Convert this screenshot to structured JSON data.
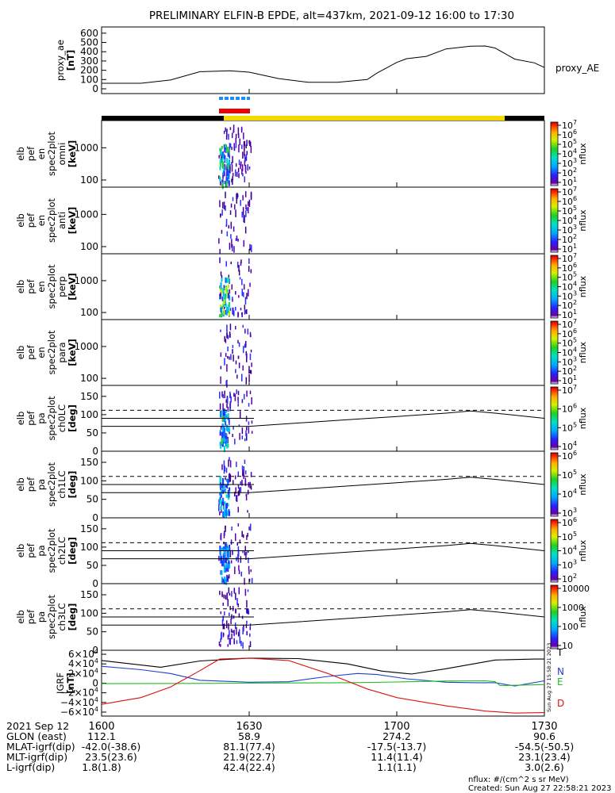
{
  "title": "PRELIMINARY ELFIN-B EPDE, alt=437km, 2021-09-12 16:00 to 17:30",
  "colors": {
    "axis": "#000000",
    "background": "#ffffff",
    "bar_black": "#000000",
    "bar_yellow": "#f5d800",
    "marker_red": "#ee0000",
    "marker_blue": "#1a8cff",
    "line_north": "#1f3fd0",
    "line_east": "#22bb22",
    "line_down": "#dd1111",
    "line_total": "#000000"
  },
  "chart_data": [
    {
      "type": "line",
      "panel": "proxy_ae",
      "ylabel_lines": [
        "proxy_ae",
        "[nT]"
      ],
      "legend_label": "proxy_AE",
      "ylim": [
        0,
        650
      ],
      "yticks": [
        "0",
        "100",
        "200",
        "300",
        "400",
        "500",
        "600"
      ],
      "ytick_values": [
        0,
        100,
        200,
        300,
        400,
        500,
        600
      ],
      "x": [
        0,
        8,
        14,
        20,
        26,
        30,
        36,
        42,
        48,
        54,
        56,
        60,
        62,
        66,
        70,
        75,
        78,
        80,
        84,
        88,
        90
      ],
      "values": [
        60,
        60,
        95,
        185,
        195,
        180,
        110,
        70,
        70,
        100,
        170,
        285,
        325,
        350,
        430,
        460,
        462,
        440,
        320,
        280,
        230
      ]
    },
    {
      "type": "heatmap",
      "panel": "omni",
      "ylabel_lines": [
        "elb",
        "pef",
        "en",
        "spec2plot",
        "omni",
        "[keV]"
      ],
      "scale": "log",
      "yticks": [
        "100",
        "1000"
      ],
      "ytick_values": [
        100,
        1000
      ],
      "colorbar": {
        "label": "nflux",
        "ticks": [
          "10",
          "10",
          "10",
          "10",
          "10",
          "10",
          "10"
        ],
        "exponents": [
          "1",
          "2",
          "3",
          "4",
          "5",
          "6",
          "7"
        ]
      }
    },
    {
      "type": "heatmap",
      "panel": "anti",
      "ylabel_lines": [
        "elb",
        "pef",
        "en",
        "spec2plot",
        "anti",
        "[keV]"
      ],
      "scale": "log",
      "yticks": [
        "100",
        "1000"
      ],
      "ytick_values": [
        100,
        1000
      ],
      "colorbar": {
        "label": "nflux",
        "ticks": [
          "10",
          "10",
          "10",
          "10",
          "10",
          "10",
          "10"
        ],
        "exponents": [
          "1",
          "2",
          "3",
          "4",
          "5",
          "6",
          "7"
        ]
      }
    },
    {
      "type": "heatmap",
      "panel": "perp",
      "ylabel_lines": [
        "elb",
        "pef",
        "en",
        "spec2plot",
        "perp",
        "[keV]"
      ],
      "scale": "log",
      "yticks": [
        "100",
        "1000"
      ],
      "ytick_values": [
        100,
        1000
      ],
      "colorbar": {
        "label": "nflux",
        "ticks": [
          "10",
          "10",
          "10",
          "10",
          "10",
          "10",
          "10"
        ],
        "exponents": [
          "1",
          "2",
          "3",
          "4",
          "5",
          "6",
          "7"
        ]
      }
    },
    {
      "type": "heatmap",
      "panel": "para",
      "ylabel_lines": [
        "elb",
        "pef",
        "en",
        "spec2plot",
        "para",
        "[keV]"
      ],
      "scale": "log",
      "yticks": [
        "100",
        "1000"
      ],
      "ytick_values": [
        100,
        1000
      ],
      "colorbar": {
        "label": "nflux",
        "ticks": [
          "10",
          "10",
          "10",
          "10",
          "10",
          "10",
          "10"
        ],
        "exponents": [
          "1",
          "2",
          "3",
          "4",
          "5",
          "6",
          "7"
        ]
      }
    },
    {
      "type": "heatmap",
      "panel": "ch0LC",
      "ylabel_lines": [
        "elb",
        "pef",
        "pa",
        "spec2plot",
        "ch0LC",
        "[deg]"
      ],
      "ylim": [
        0,
        180
      ],
      "yticks": [
        "0",
        "50",
        "100",
        "150"
      ],
      "ytick_values": [
        0,
        50,
        100,
        150
      ],
      "colorbar": {
        "label": "nflux",
        "ticks": [
          "10",
          "10",
          "10",
          "10"
        ],
        "exponents": [
          "4",
          "5",
          "6",
          "7"
        ]
      }
    },
    {
      "type": "heatmap",
      "panel": "ch1LC",
      "ylabel_lines": [
        "elb",
        "pef",
        "pa",
        "spec2plot",
        "ch1LC",
        "[deg]"
      ],
      "ylim": [
        0,
        180
      ],
      "yticks": [
        "0",
        "50",
        "100",
        "150"
      ],
      "ytick_values": [
        0,
        50,
        100,
        150
      ],
      "colorbar": {
        "label": "nflux",
        "ticks": [
          "10",
          "10",
          "10",
          "10"
        ],
        "exponents": [
          "3",
          "4",
          "5",
          "6"
        ]
      }
    },
    {
      "type": "heatmap",
      "panel": "ch2LC",
      "ylabel_lines": [
        "elb",
        "pef",
        "pa",
        "spec2plot",
        "ch2LC",
        "[deg]"
      ],
      "ylim": [
        0,
        180
      ],
      "yticks": [
        "0",
        "50",
        "100",
        "150"
      ],
      "ytick_values": [
        0,
        50,
        100,
        150
      ],
      "colorbar": {
        "label": "nflux",
        "ticks": [
          "10",
          "10",
          "10",
          "10",
          "10"
        ],
        "exponents": [
          "2",
          "3",
          "4",
          "5",
          "6"
        ]
      }
    },
    {
      "type": "heatmap",
      "panel": "ch3LC",
      "ylabel_lines": [
        "elb",
        "pef",
        "pa",
        "spec2plot",
        "ch3LC",
        "[deg]"
      ],
      "ylim": [
        0,
        180
      ],
      "yticks": [
        "0",
        "50",
        "100",
        "150"
      ],
      "ytick_values": [
        0,
        50,
        100,
        150
      ],
      "colorbar": {
        "label": "nflux",
        "ticks": [
          "10",
          "100",
          "1000",
          "10000"
        ]
      }
    },
    {
      "type": "line",
      "panel": "igrf",
      "ylabel_lines": [
        "IGRF",
        "[nT]"
      ],
      "ylim": [
        -65000,
        65000
      ],
      "yticks": [
        "6×10",
        "4×10",
        "2×10",
        "0",
        "−2×10",
        "−4×10",
        "−6×10"
      ],
      "ytick_values": [
        60000,
        40000,
        20000,
        0,
        -20000,
        -40000,
        -60000
      ],
      "ytick_exponent": "4",
      "side_labels": [
        "T",
        "N",
        "E",
        "D"
      ],
      "series": [
        {
          "name": "T",
          "x": [
            0,
            12,
            20,
            30,
            40,
            50,
            57,
            63,
            70,
            80,
            88,
            90
          ],
          "values": [
            47000,
            33000,
            46000,
            52000,
            51000,
            40000,
            25000,
            19000,
            30000,
            48000,
            50000,
            50000
          ]
        },
        {
          "name": "N",
          "x": [
            0,
            8,
            14,
            20,
            30,
            38,
            46,
            52,
            56,
            62,
            70,
            76,
            80,
            84,
            90
          ],
          "values": [
            35000,
            28000,
            20000,
            6000,
            2000,
            3000,
            14000,
            20000,
            18000,
            9000,
            2000,
            1000,
            1000,
            -6000,
            5000
          ]
        },
        {
          "name": "E",
          "x": [
            0,
            20,
            30,
            40,
            50,
            60,
            70,
            78,
            80,
            81,
            90
          ],
          "values": [
            -1000,
            -500,
            0,
            500,
            1000,
            2500,
            4500,
            5000,
            3000,
            -5000,
            -3000
          ]
        },
        {
          "name": "D",
          "x": [
            0,
            8,
            14,
            20,
            24,
            30,
            38,
            46,
            54,
            60,
            70,
            78,
            84,
            90
          ],
          "values": [
            -44000,
            -30000,
            -8000,
            26000,
            50000,
            52000,
            47000,
            20000,
            -12000,
            -30000,
            -47000,
            -58000,
            -62000,
            -61000
          ]
        }
      ]
    }
  ],
  "ticks": {
    "time_labels": [
      "1600",
      "1630",
      "1700",
      "1730"
    ],
    "time_minutes": [
      0,
      30,
      60,
      90
    ],
    "row_labels": [
      "2021 Sep 12",
      "GLON (east)",
      "MLAT-igrf(dip)",
      "MLT-igrf(dip)",
      "L-igrf(dip)"
    ],
    "rows": [
      [
        "112.1",
        "58.9",
        "274.2",
        "90.6"
      ],
      [
        "-42.0(-38.6)",
        "81.1(77.4)",
        "-17.5(-13.7)",
        "-54.5(-50.5)"
      ],
      [
        "23.5(23.6)",
        "21.9(22.7)",
        "11.4(11.4)",
        "23.1(23.4)"
      ],
      [
        "1.8(1.8)",
        "42.4(22.4)",
        "1.1(1.1)",
        "3.0(2.6)"
      ]
    ]
  },
  "footer": {
    "units": "nflux: #/(cm^2 s sr MeV)",
    "created": "Created: Sun Aug 27 22:58:21 2023",
    "side_stamp": "Sun Aug 27 15:58:21 2023"
  }
}
